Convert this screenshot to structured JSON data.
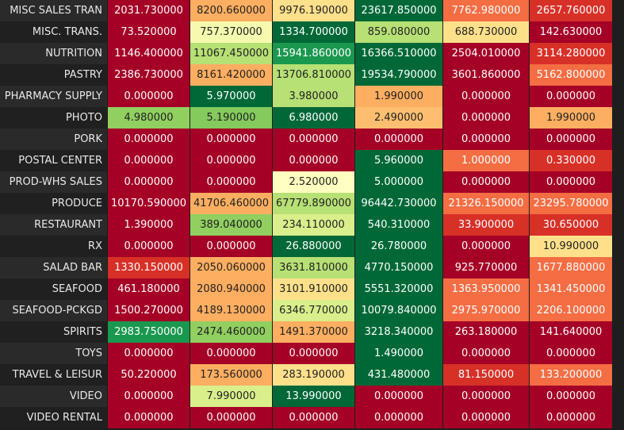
{
  "rows": [
    {
      "label": "MISC SALES TRAN",
      "values": [
        "2031.730000",
        "8200.660000",
        "9976.190000",
        "23617.850000",
        "7762.980000",
        "2657.760000"
      ]
    },
    {
      "label": "MISC. TRANS.",
      "values": [
        "73.520000",
        "757.370000",
        "1334.700000",
        "859.080000",
        "688.730000",
        "142.630000"
      ]
    },
    {
      "label": "NUTRITION",
      "values": [
        "1146.400000",
        "11067.450000",
        "15941.860000",
        "16366.510000",
        "2504.010000",
        "3114.280000"
      ]
    },
    {
      "label": "PASTRY",
      "values": [
        "2386.730000",
        "8161.420000",
        "13706.810000",
        "19534.790000",
        "3601.860000",
        "5162.800000"
      ]
    },
    {
      "label": "PHARMACY SUPPLY",
      "values": [
        "0.000000",
        "5.970000",
        "3.980000",
        "1.990000",
        "0.000000",
        "0.000000"
      ]
    },
    {
      "label": "PHOTO",
      "values": [
        "4.980000",
        "5.190000",
        "6.980000",
        "2.490000",
        "0.000000",
        "1.990000"
      ]
    },
    {
      "label": "PORK",
      "values": [
        "0.000000",
        "0.000000",
        "0.000000",
        "0.000000",
        "0.000000",
        "0.000000"
      ]
    },
    {
      "label": "POSTAL CENTER",
      "values": [
        "0.000000",
        "0.000000",
        "0.000000",
        "5.960000",
        "1.000000",
        "0.330000"
      ]
    },
    {
      "label": "PROD-WHS SALES",
      "values": [
        "0.000000",
        "0.000000",
        "2.520000",
        "5.000000",
        "0.000000",
        "0.000000"
      ]
    },
    {
      "label": "PRODUCE",
      "values": [
        "10170.590000",
        "41706.460000",
        "67779.890000",
        "96442.730000",
        "21326.150000",
        "23295.780000"
      ]
    },
    {
      "label": "RESTAURANT",
      "values": [
        "1.390000",
        "389.040000",
        "234.110000",
        "540.310000",
        "33.900000",
        "30.650000"
      ]
    },
    {
      "label": "RX",
      "values": [
        "0.000000",
        "0.000000",
        "26.880000",
        "26.780000",
        "0.000000",
        "10.990000"
      ]
    },
    {
      "label": "SALAD BAR",
      "values": [
        "1330.150000",
        "2050.060000",
        "3631.810000",
        "4770.150000",
        "925.770000",
        "1677.880000"
      ]
    },
    {
      "label": "SEAFOOD",
      "values": [
        "461.180000",
        "2080.940000",
        "3101.910000",
        "5551.320000",
        "1363.950000",
        "1341.450000"
      ]
    },
    {
      "label": "SEAFOOD-PCKGD",
      "values": [
        "1500.270000",
        "4189.130000",
        "6346.770000",
        "10079.840000",
        "2975.970000",
        "2206.100000"
      ]
    },
    {
      "label": "SPIRITS",
      "values": [
        "2983.750000",
        "2474.460000",
        "1491.370000",
        "3218.340000",
        "263.180000",
        "141.640000"
      ]
    },
    {
      "label": "TOYS",
      "values": [
        "0.000000",
        "0.000000",
        "0.000000",
        "1.490000",
        "0.000000",
        "0.000000"
      ]
    },
    {
      "label": "TRAVEL & LEISUR",
      "values": [
        "50.220000",
        "173.560000",
        "283.190000",
        "431.480000",
        "81.150000",
        "133.200000"
      ]
    },
    {
      "label": "VIDEO",
      "values": [
        "0.000000",
        "7.990000",
        "13.990000",
        "0.000000",
        "0.000000",
        "0.000000"
      ]
    },
    {
      "label": "VIDEO RENTAL",
      "values": [
        "0.000000",
        "0.000000",
        "0.000000",
        "0.000000",
        "0.000000",
        "0.000000"
      ]
    }
  ],
  "colors": [
    [
      "#a50026",
      "#fdae61",
      "#fee08b",
      "#006837",
      "#f46d43",
      "#d73027"
    ],
    [
      "#a50026",
      "#f6faaf",
      "#006837",
      "#b7e075",
      "#fee08b",
      "#a50026"
    ],
    [
      "#a50026",
      "#b7e075",
      "#1a9850",
      "#006837",
      "#a50026",
      "#d73027"
    ],
    [
      "#a50026",
      "#fdae61",
      "#b7e075",
      "#006837",
      "#a50026",
      "#f46d43"
    ],
    [
      "#a50026",
      "#006837",
      "#b7e075",
      "#fdae61",
      "#a50026",
      "#a50026"
    ],
    [
      "#91cf60",
      "#84ca5d",
      "#006837",
      "#fdbf6f",
      "#a50026",
      "#fdae61"
    ],
    [
      "#a50026",
      "#a50026",
      "#a50026",
      "#a50026",
      "#a50026",
      "#a50026"
    ],
    [
      "#a50026",
      "#a50026",
      "#a50026",
      "#006837",
      "#f46d43",
      "#d73027"
    ],
    [
      "#a50026",
      "#a50026",
      "#ffffbf",
      "#006837",
      "#a50026",
      "#a50026"
    ],
    [
      "#a50026",
      "#fdae61",
      "#b7e075",
      "#006837",
      "#f46d43",
      "#f46d43"
    ],
    [
      "#a50026",
      "#91cf60",
      "#d9ef8b",
      "#006837",
      "#d73027",
      "#d73027"
    ],
    [
      "#a50026",
      "#a50026",
      "#006837",
      "#006837",
      "#a50026",
      "#fee08b"
    ],
    [
      "#d73027",
      "#fdae61",
      "#b7e075",
      "#006837",
      "#a50026",
      "#f46d43"
    ],
    [
      "#a50026",
      "#fdae61",
      "#fee08b",
      "#006837",
      "#f46d43",
      "#f46d43"
    ],
    [
      "#a50026",
      "#fdae61",
      "#d9ef8b",
      "#006837",
      "#f46d43",
      "#f46d43"
    ],
    [
      "#1a9850",
      "#91cf60",
      "#fdae61",
      "#006837",
      "#a50026",
      "#a50026"
    ],
    [
      "#a50026",
      "#a50026",
      "#a50026",
      "#006837",
      "#a50026",
      "#a50026"
    ],
    [
      "#a50026",
      "#fdae61",
      "#fee08b",
      "#006837",
      "#d73027",
      "#f46d43"
    ],
    [
      "#a50026",
      "#d9ef8b",
      "#006837",
      "#a50026",
      "#a50026",
      "#a50026"
    ],
    [
      "#a50026",
      "#a50026",
      "#a50026",
      "#a50026",
      "#a50026",
      "#a50026"
    ]
  ]
}
